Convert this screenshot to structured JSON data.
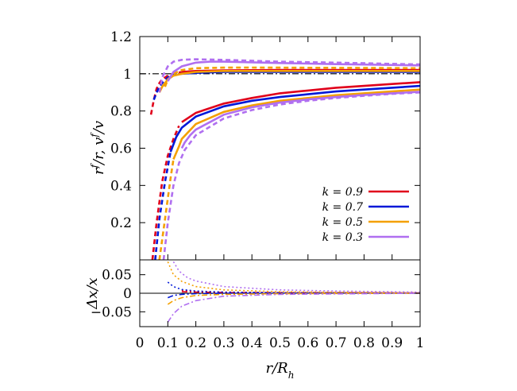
{
  "chart_data": [
    {
      "type": "line",
      "panel": "top",
      "ylabel": "r^f/r,  v^f/v",
      "xlim": [
        0,
        1
      ],
      "ylim": [
        0,
        1.2
      ],
      "yticks": [
        0.2,
        0.4,
        0.6,
        0.8,
        1,
        1.2
      ],
      "ytick_labels": [
        "0.2",
        "0.4",
        "0.6",
        "0.8",
        "1",
        "1.2"
      ],
      "reference_line": {
        "y": 1,
        "style": "dash-dot",
        "color": "#000000"
      },
      "legend": {
        "placement": "lower-right"
      },
      "series": [
        {
          "name": "k = 0.9",
          "color": "#e0001b",
          "upper_dashed": {
            "x": [
              0.04,
              0.05,
              0.06,
              0.07,
              0.08,
              0.1,
              0.12,
              0.15
            ],
            "y": [
              0.78,
              0.86,
              0.92,
              0.95,
              0.97,
              0.99,
              1.0,
              1.01
            ]
          },
          "upper_solid": {
            "x": [
              0.15,
              0.2,
              0.3,
              0.5,
              0.7,
              1.0
            ],
            "y": [
              1.01,
              1.015,
              1.018,
              1.02,
              1.02,
              1.02
            ]
          },
          "lower_dashed": {
            "x": [
              0.045,
              0.06,
              0.08,
              0.1,
              0.12,
              0.14
            ],
            "y": [
              0.0,
              0.2,
              0.42,
              0.56,
              0.65,
              0.72
            ]
          },
          "lower_solid": {
            "x": [
              0.15,
              0.2,
              0.3,
              0.4,
              0.5,
              0.6,
              0.7,
              0.8,
              0.9,
              1.0
            ],
            "y": [
              0.74,
              0.79,
              0.84,
              0.87,
              0.895,
              0.91,
              0.925,
              0.935,
              0.945,
              0.955
            ]
          }
        },
        {
          "name": "k = 0.7",
          "color": "#0018d8",
          "upper_dashed": {
            "x": [
              0.05,
              0.06,
              0.07,
              0.08,
              0.1,
              0.12,
              0.15
            ],
            "y": [
              0.86,
              0.9,
              0.93,
              0.95,
              0.98,
              0.995,
              1.0
            ]
          },
          "upper_solid": {
            "x": [
              0.15,
              0.2,
              0.3,
              0.5,
              0.7,
              1.0
            ],
            "y": [
              1.0,
              1.005,
              1.01,
              1.01,
              1.01,
              1.01
            ]
          },
          "lower_dashed": {
            "x": [
              0.055,
              0.07,
              0.09,
              0.11
            ],
            "y": [
              0.0,
              0.22,
              0.42,
              0.58
            ]
          },
          "lower_solid": {
            "x": [
              0.11,
              0.13,
              0.15,
              0.2,
              0.3,
              0.4,
              0.5,
              0.6,
              0.7,
              0.8,
              0.9,
              1.0
            ],
            "y": [
              0.58,
              0.66,
              0.71,
              0.77,
              0.825,
              0.855,
              0.875,
              0.89,
              0.905,
              0.915,
              0.925,
              0.935
            ]
          }
        },
        {
          "name": "k = 0.5",
          "color": "#f4a000",
          "upper_dashed": {
            "x": [
              0.09,
              0.1,
              0.12,
              0.15,
              0.2,
              0.3,
              0.5,
              1.0
            ],
            "y": [
              0.93,
              0.97,
              1.0,
              1.02,
              1.03,
              1.033,
              1.033,
              1.03
            ]
          },
          "upper_solid": {
            "x": [
              0.07,
              0.08,
              0.1,
              0.12,
              0.15,
              0.2,
              0.3,
              0.5,
              1.0
            ],
            "y": [
              0.9,
              0.93,
              0.97,
              0.99,
              1.0,
              1.01,
              1.015,
              1.015,
              1.015
            ]
          },
          "lower_dashed": {
            "x": [
              0.07,
              0.09,
              0.11,
              0.12
            ],
            "y": [
              0.0,
              0.22,
              0.44,
              0.54
            ]
          },
          "lower_solid": {
            "x": [
              0.12,
              0.14,
              0.15,
              0.2,
              0.3,
              0.4,
              0.5,
              0.6,
              0.7,
              0.8,
              0.9,
              1.0
            ],
            "y": [
              0.54,
              0.61,
              0.65,
              0.73,
              0.795,
              0.83,
              0.855,
              0.87,
              0.885,
              0.895,
              0.905,
              0.915
            ]
          }
        },
        {
          "name": "k = 0.3",
          "color": "#b06ff0",
          "upper_dashed": {
            "x": [
              0.07,
              0.08,
              0.1,
              0.12,
              0.15,
              0.2,
              0.3,
              0.5,
              0.7,
              1.0
            ],
            "y": [
              0.9,
              0.98,
              1.04,
              1.065,
              1.075,
              1.078,
              1.075,
              1.065,
              1.06,
              1.05
            ]
          },
          "upper_solid": {
            "x": [
              0.1,
              0.12,
              0.15,
              0.2,
              0.25,
              0.3,
              0.5,
              0.7,
              1.0
            ],
            "y": [
              0.96,
              1.01,
              1.04,
              1.06,
              1.065,
              1.065,
              1.058,
              1.052,
              1.045
            ]
          },
          "lower_dashed": {
            "x": [
              0.085,
              0.1,
              0.12,
              0.14,
              0.16,
              0.2,
              0.3,
              0.4,
              0.5,
              0.6,
              0.7,
              0.8,
              0.9,
              1.0
            ],
            "y": [
              0.0,
              0.2,
              0.4,
              0.52,
              0.59,
              0.67,
              0.76,
              0.805,
              0.835,
              0.855,
              0.87,
              0.882,
              0.892,
              0.9
            ]
          },
          "lower_solid": {
            "x": [
              0.15,
              0.16,
              0.18,
              0.2,
              0.3,
              0.4,
              0.5,
              0.6,
              0.7,
              0.8,
              0.9,
              1.0
            ],
            "y": [
              0.6,
              0.63,
              0.67,
              0.7,
              0.78,
              0.82,
              0.845,
              0.862,
              0.875,
              0.886,
              0.895,
              0.903
            ]
          }
        }
      ]
    },
    {
      "type": "line",
      "panel": "bottom",
      "xlabel": "r/R_h",
      "ylabel": "Δx/x",
      "xlim": [
        0,
        1
      ],
      "ylim": [
        -0.09,
        0.09
      ],
      "xticks": [
        0,
        0.1,
        0.2,
        0.3,
        0.4,
        0.5,
        0.6,
        0.7,
        0.8,
        0.9,
        1
      ],
      "xtick_labels": [
        "0",
        "0.1",
        "0.2",
        "0.3",
        "0.4",
        "0.5",
        "0.6",
        "0.7",
        "0.8",
        "0.9",
        "1"
      ],
      "yticks": [
        -0.05,
        0,
        0.05
      ],
      "ytick_labels": [
        "−0.05",
        "0",
        "0.05"
      ],
      "series": [
        {
          "name": "k = 0.9",
          "color": "#e0001b",
          "dotted": {
            "x": [
              0.15,
              0.2,
              0.3,
              0.5,
              0.7,
              1.0
            ],
            "y": [
              0.008,
              0.005,
              0.003,
              0.002,
              0.0015,
              0.001
            ]
          },
          "dashdot": {
            "x": [
              0.15,
              0.2,
              0.3,
              0.5,
              0.7,
              1.0
            ],
            "y": [
              0.004,
              0.003,
              0.002,
              0.001,
              0.0008,
              0.0005
            ]
          }
        },
        {
          "name": "k = 0.7",
          "color": "#0018d8",
          "dotted": {
            "x": [
              0.1,
              0.12,
              0.15,
              0.2,
              0.3,
              0.5,
              1.0
            ],
            "y": [
              0.03,
              0.018,
              0.01,
              0.006,
              0.003,
              0.001,
              0.0
            ]
          },
          "dashdot": {
            "x": [
              0.1,
              0.12,
              0.15,
              0.2,
              0.3,
              0.5,
              1.0
            ],
            "y": [
              -0.012,
              -0.006,
              -0.003,
              -0.001,
              0.0,
              0.0,
              0.0
            ]
          }
        },
        {
          "name": "k = 0.5",
          "color": "#f4a000",
          "dotted": {
            "x": [
              0.1,
              0.12,
              0.15,
              0.2,
              0.3,
              0.5,
              1.0
            ],
            "y": [
              0.085,
              0.05,
              0.032,
              0.018,
              0.009,
              0.004,
              0.001
            ]
          },
          "dashdot": {
            "x": [
              0.1,
              0.12,
              0.15,
              0.2,
              0.3,
              0.5,
              1.0
            ],
            "y": [
              -0.03,
              -0.02,
              -0.012,
              -0.006,
              -0.003,
              -0.001,
              0.0
            ]
          }
        },
        {
          "name": "k = 0.3",
          "color": "#b06ff0",
          "dotted": {
            "x": [
              0.12,
              0.14,
              0.17,
              0.2,
              0.3,
              0.5,
              0.7,
              1.0
            ],
            "y": [
              0.085,
              0.06,
              0.042,
              0.033,
              0.018,
              0.009,
              0.006,
              0.003
            ]
          },
          "dashdot": {
            "x": [
              0.1,
              0.12,
              0.15,
              0.2,
              0.3,
              0.5,
              1.0
            ],
            "y": [
              -0.078,
              -0.055,
              -0.035,
              -0.02,
              -0.008,
              -0.003,
              0.0
            ]
          }
        }
      ]
    }
  ]
}
